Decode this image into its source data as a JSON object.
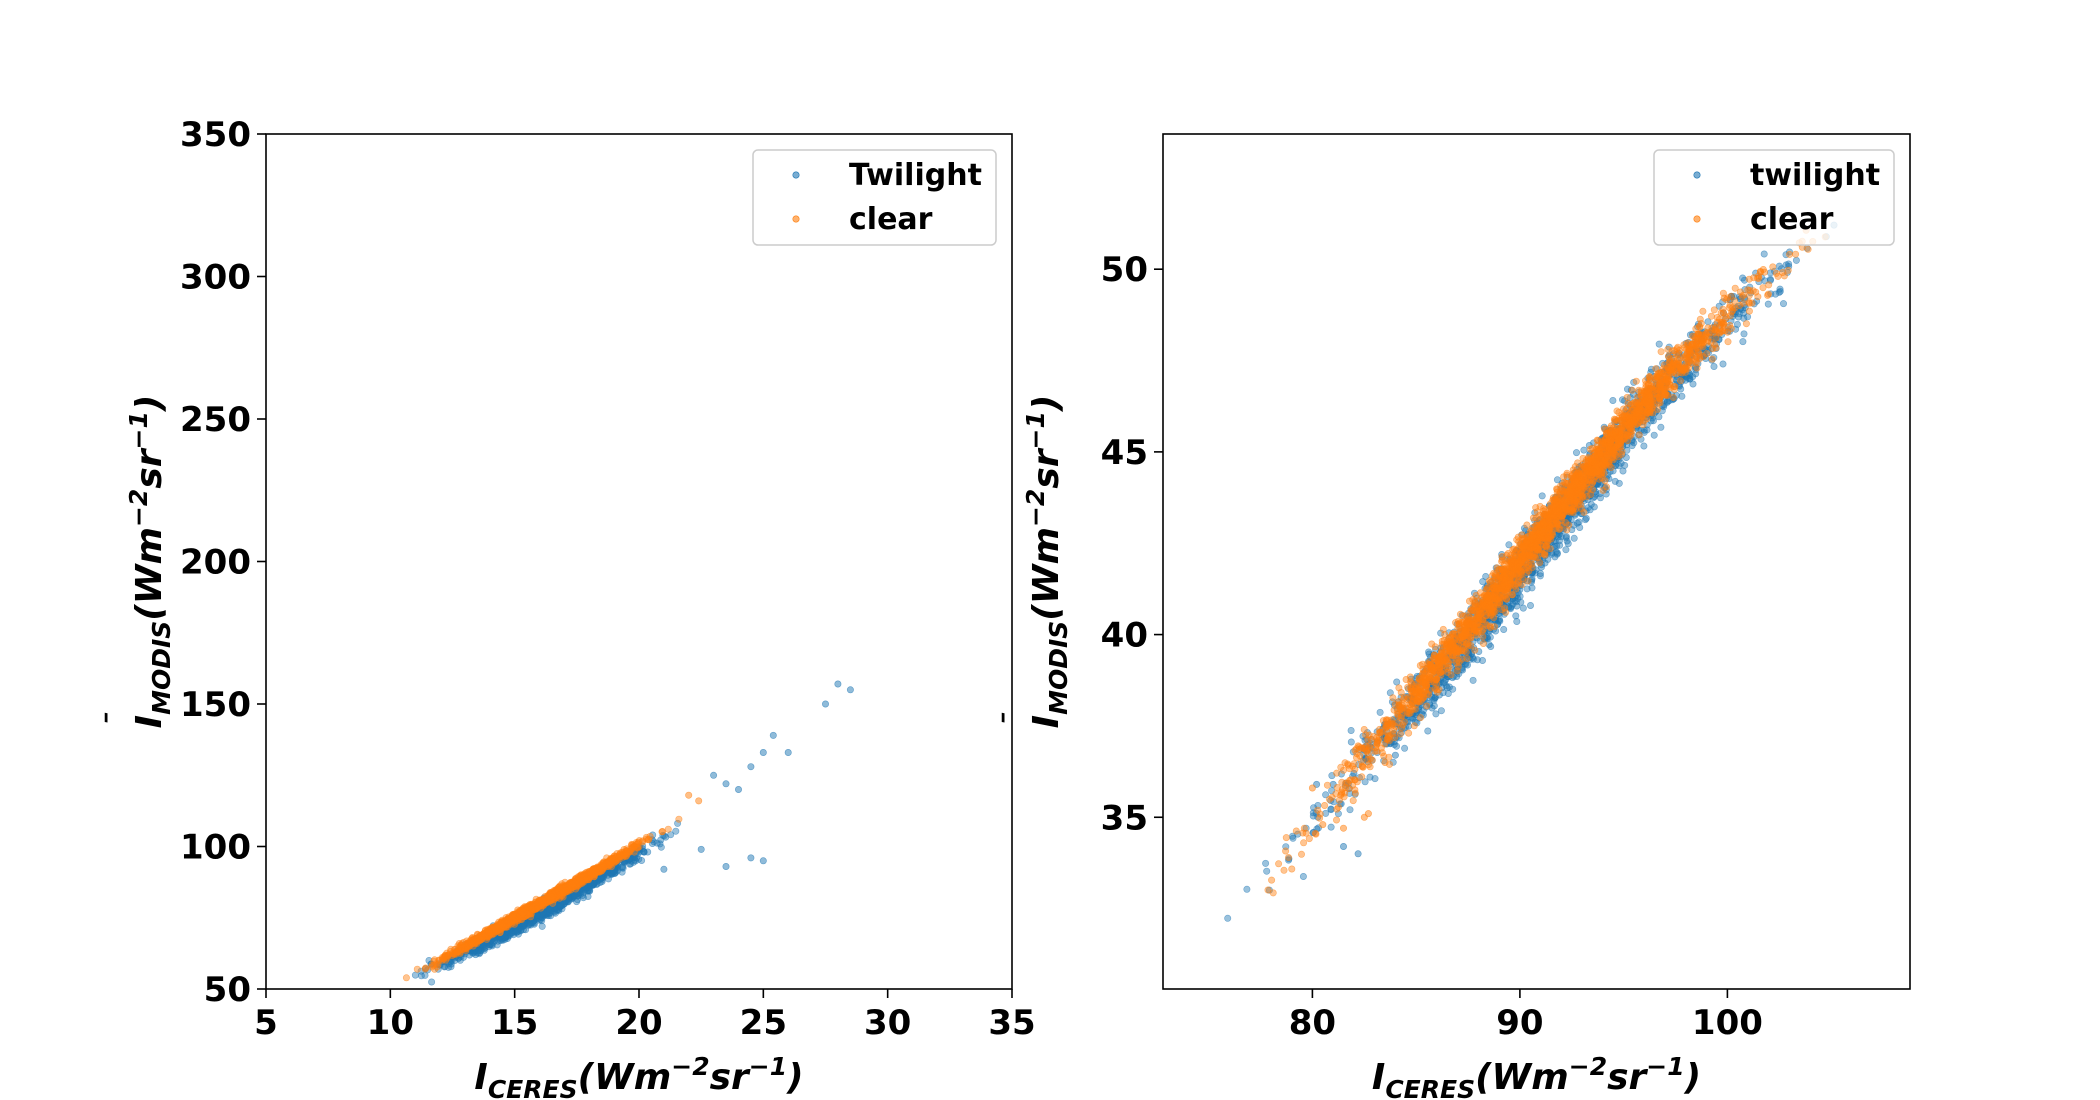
{
  "chart_data": [
    {
      "type": "scatter",
      "xlim": [
        5,
        35
      ],
      "ylim": [
        50,
        350
      ],
      "xticks": [
        "5",
        "10",
        "15",
        "20",
        "25",
        "30",
        "35"
      ],
      "yticks": [
        "50",
        "100",
        "150",
        "200",
        "250",
        "300",
        "350"
      ],
      "xlabel": {
        "main": "I",
        "sub": "CERES",
        "unit": "(Wm",
        "exp1": "−2",
        "mid": "sr",
        "exp2": "−1",
        "close": ")"
      },
      "ylabel": {
        "bar": "¯",
        "main": "I",
        "sub": "MODIS",
        "unit": "(Wm",
        "exp1": "−2",
        "mid": "sr",
        "exp2": "−1",
        "close": ")"
      },
      "legend_position": "top-right",
      "series": [
        {
          "name": "Twilight",
          "color": "#1f77b4",
          "trend": {
            "x": [
              9.6,
              12,
              15,
              18,
              20,
              22.8
            ],
            "y": [
              50,
              58,
              72,
              87,
              98,
              113
            ]
          },
          "spread": 3.0,
          "points": 1200,
          "outliers": [
            [
              23.0,
              125
            ],
            [
              23.5,
              122
            ],
            [
              24.0,
              120
            ],
            [
              24.5,
              128
            ],
            [
              25.0,
              133
            ],
            [
              25.4,
              139
            ],
            [
              26.0,
              133
            ],
            [
              27.5,
              150
            ],
            [
              28.0,
              157
            ],
            [
              28.5,
              155
            ],
            [
              24.5,
              96
            ],
            [
              25.0,
              95
            ],
            [
              22.5,
              99
            ],
            [
              23.5,
              93
            ],
            [
              21.0,
              92
            ]
          ]
        },
        {
          "name": "clear",
          "color": "#ff7f0e",
          "trend": {
            "x": [
              9.7,
              12,
              15,
              18,
              20,
              22.5
            ],
            "y": [
              51,
              60,
              75,
              90,
              101,
              114
            ]
          },
          "spread": 1.6,
          "points": 1400,
          "outliers": [
            [
              22.0,
              118
            ],
            [
              22.4,
              116
            ]
          ]
        }
      ]
    },
    {
      "type": "scatter",
      "xlim": [
        72.8,
        108.8
      ],
      "ylim": [
        30.3,
        53.7
      ],
      "xticks": [
        "80",
        "90",
        "100"
      ],
      "xtick_values": [
        80,
        90,
        100
      ],
      "yticks": [
        "35",
        "40",
        "45",
        "50"
      ],
      "ytick_values": [
        35,
        40,
        45,
        50
      ],
      "xlabel": {
        "main": "I",
        "sub": "CERES",
        "unit": "(Wm",
        "exp1": "−2",
        "mid": "sr",
        "exp2": "−1",
        "close": ")"
      },
      "ylabel": {
        "bar": "¯",
        "main": "I",
        "sub": "MODIS",
        "unit": "(Wm",
        "exp1": "−2",
        "mid": "sr",
        "exp2": "−1",
        "close": ")"
      },
      "legend_position": "top-right",
      "series": [
        {
          "name": "twilight",
          "color": "#1f77b4",
          "trend": {
            "x": [
              74.7,
              77,
              81,
              84,
              88,
              92,
              96,
              100,
              104,
              107.5
            ],
            "y": [
              31.3,
              32.8,
              35.5,
              37.5,
              40.3,
              43.2,
              46.2,
              48.6,
              50.5,
              52.0
            ]
          },
          "spread": 0.9,
          "points": 1800,
          "outliers": [
            [
              81.5,
              34.2
            ],
            [
              82.2,
              34.0
            ],
            [
              81.0,
              35.9
            ],
            [
              80.2,
              35.9
            ],
            [
              82.0,
              36.2
            ],
            [
              84.0,
              36.7
            ]
          ]
        },
        {
          "name": "clear",
          "color": "#ff7f0e",
          "trend": {
            "x": [
              75.5,
              78,
              81,
              84,
              88,
              92,
              96,
              100,
              104,
              107
            ],
            "y": [
              31.6,
              33.3,
              35.6,
              37.7,
              40.5,
              43.5,
              46.4,
              48.8,
              50.6,
              51.9
            ]
          },
          "spread": 0.65,
          "points": 2200,
          "outliers": [
            [
              80.5,
              34.8
            ],
            [
              81.5,
              34.7
            ],
            [
              82.5,
              35.0
            ],
            [
              80.0,
              35.8
            ],
            [
              82.7,
              35.1
            ],
            [
              83.5,
              36.5
            ]
          ]
        }
      ]
    }
  ]
}
